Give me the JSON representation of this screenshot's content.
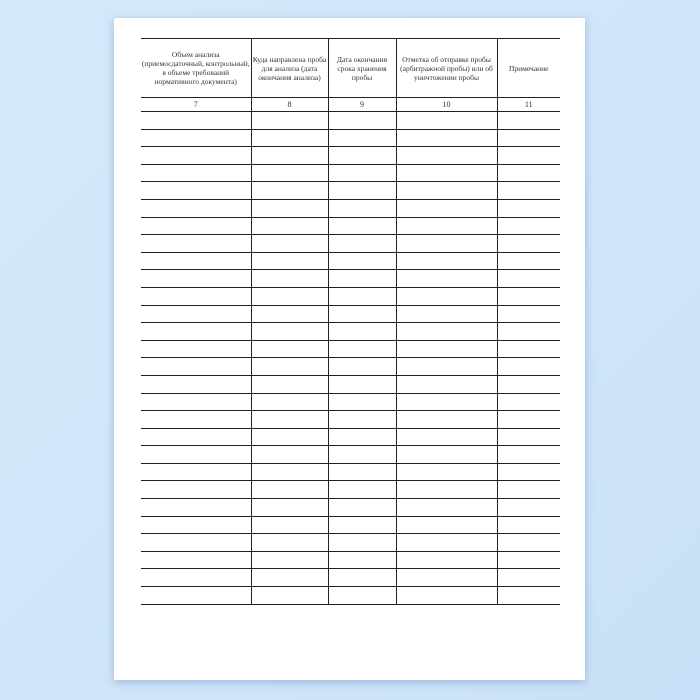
{
  "table": {
    "headers": [
      "Объем анализа (приемосдаточный, контрольный, в объеме требований нормативного документа)",
      "Куда направлена проба для анализа (дата окончания анализа)",
      "Дата окончания срока хранения пробы",
      "Отметка об отправке пробы (арбитражной пробы) или об уничтожении пробы",
      "Примечание"
    ],
    "column_numbers": [
      "7",
      "8",
      "9",
      "10",
      "11"
    ]
  }
}
